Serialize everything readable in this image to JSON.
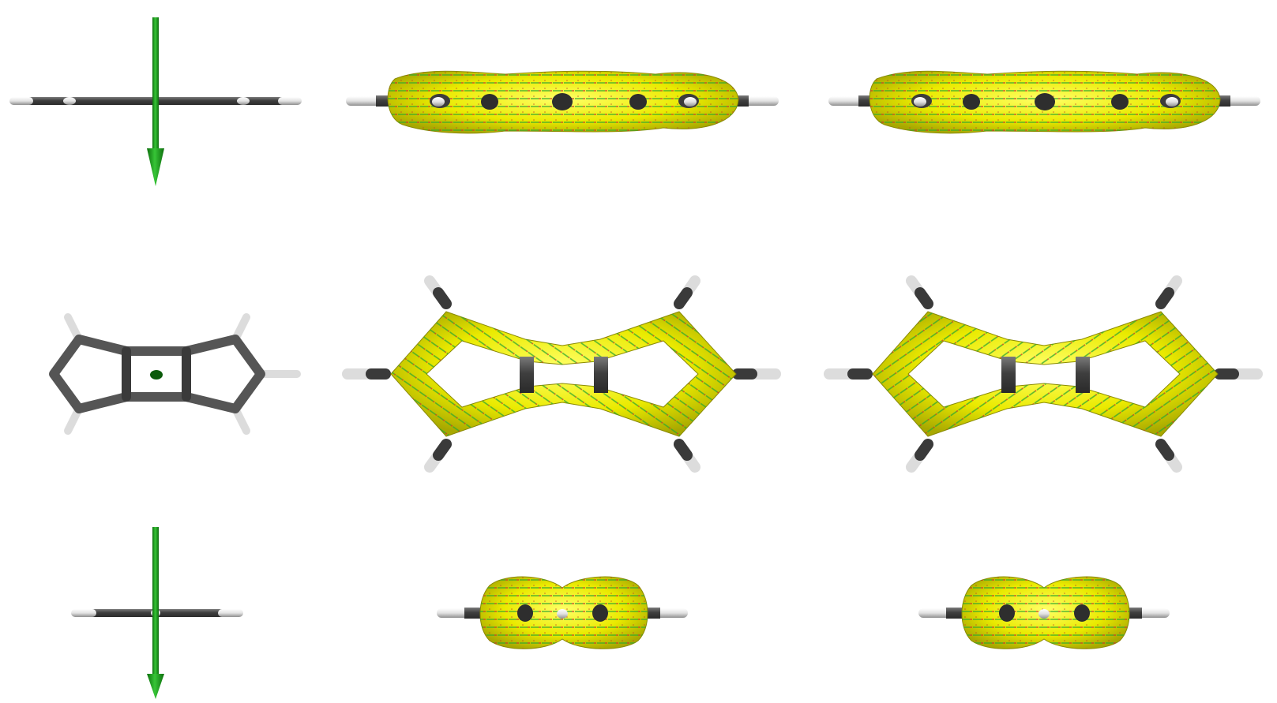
{
  "figure": {
    "rows": [
      "side-view",
      "top-view",
      "end-view"
    ],
    "columns": [
      "molecule-with-field-arrow",
      "current-density-isosurface-a",
      "current-density-isosurface-b"
    ],
    "panel_count": 9
  },
  "molecule": {
    "atom_colors": {
      "carbon": "#4d4d4d",
      "carbon_highlight": "#8a8a8a",
      "hydrogen": "#e6e6e6",
      "hydrogen_shadow": "#9a9a9a"
    },
    "ring_center_marker_color": "#0a5a0a"
  },
  "field_arrow": {
    "color": "#1fa01f",
    "direction": "down"
  },
  "isosurface": {
    "surface_color": "#f2f200",
    "surface_shadow": "#b8b800",
    "arrow_colors": [
      "#2fa82f",
      "#c0392b"
    ]
  }
}
